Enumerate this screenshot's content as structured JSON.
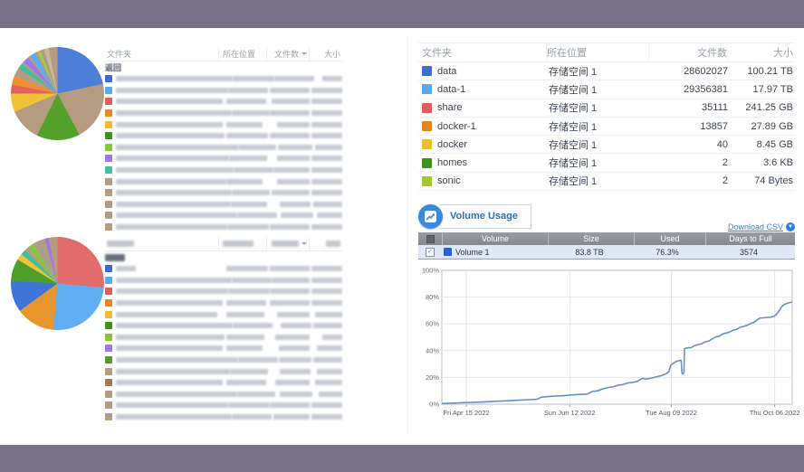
{
  "app": {
    "background": "#797284",
    "panel": "#ffffff"
  },
  "left_top_table": {
    "headers": {
      "folder": "文件夹",
      "location": "所在位置",
      "count": "文件数",
      "size": "大小"
    },
    "back_label": "返回",
    "redacted": true,
    "pie_slices": [
      {
        "color": "#4d7fd9",
        "deg": 78
      },
      {
        "color": "#b59c80",
        "deg": 74
      },
      {
        "color": "#53a02b",
        "deg": 54
      },
      {
        "color": "#b59c80",
        "deg": 41
      },
      {
        "color": "#f0c237",
        "deg": 23
      },
      {
        "color": "#e26262",
        "deg": 11
      },
      {
        "color": "#ee8f2f",
        "deg": 11
      },
      {
        "color": "#b59c80",
        "deg": 11
      },
      {
        "color": "#44bd9d",
        "deg": 7
      },
      {
        "color": "#b59c80",
        "deg": 3
      },
      {
        "color": "#9c79e8",
        "deg": 8
      },
      {
        "color": "#b59c80",
        "deg": 3
      },
      {
        "color": "#58aef2",
        "deg": 7
      },
      {
        "color": "#b59c80",
        "deg": 3
      },
      {
        "color": "#a2cd4a",
        "deg": 4
      },
      {
        "color": "#b59c80",
        "deg": 5
      },
      {
        "color": "#c9b89a",
        "deg": 6
      },
      {
        "color": "#b59c80",
        "deg": 11
      }
    ],
    "rows": [
      {
        "color": "#3b6cc9",
        "w": [
          152,
          46,
          44,
          22
        ]
      },
      {
        "color": "#58aaf0",
        "w": [
          128,
          44,
          46,
          40
        ]
      },
      {
        "color": "#e25c5c",
        "w": [
          118,
          44,
          42,
          44
        ]
      },
      {
        "color": "#e6881f",
        "w": [
          168,
          42,
          46,
          48
        ]
      },
      {
        "color": "#ecbe30",
        "w": [
          118,
          40,
          36,
          40
        ]
      },
      {
        "color": "#3a941c",
        "w": [
          120,
          46,
          44,
          46
        ]
      },
      {
        "color": "#8bc434",
        "w": [
          150,
          42,
          38,
          30
        ]
      },
      {
        "color": "#9c79e8",
        "w": [
          128,
          42,
          36,
          38
        ]
      },
      {
        "color": "#3fbf9f",
        "w": [
          158,
          44,
          40,
          42
        ]
      },
      {
        "color": "#b59c80",
        "w": [
          122,
          40,
          36,
          36
        ]
      },
      {
        "color": "#b59c80",
        "w": [
          138,
          42,
          42,
          44
        ]
      },
      {
        "color": "#b59c80",
        "w": [
          132,
          40,
          34,
          32
        ]
      },
      {
        "color": "#b59c80",
        "w": [
          150,
          44,
          36,
          28
        ]
      },
      {
        "color": "#b59c80",
        "w": [
          126,
          46,
          48,
          46
        ]
      }
    ]
  },
  "left_bottom_table": {
    "headers_redacted": true,
    "redacted": true,
    "pie_slices": [
      {
        "color": "#e26c6c",
        "deg": 95
      },
      {
        "color": "#62aef2",
        "deg": 90
      },
      {
        "color": "#e8962e",
        "deg": 49
      },
      {
        "color": "#3f74d8",
        "deg": 39
      },
      {
        "color": "#4f9e2a",
        "deg": 28
      },
      {
        "color": "#f0c237",
        "deg": 8
      },
      {
        "color": "#3fbf9f",
        "deg": 7
      },
      {
        "color": "#b59c80",
        "deg": 4
      },
      {
        "color": "#8bc34a",
        "deg": 9
      },
      {
        "color": "#b59c80",
        "deg": 5
      },
      {
        "color": "#9aa0a8",
        "deg": 3
      },
      {
        "color": "#b59c80",
        "deg": 7
      },
      {
        "color": "#9c79e8",
        "deg": 5
      },
      {
        "color": "#b59c80",
        "deg": 11
      }
    ],
    "rows": [
      {
        "color": "#3b6cc9",
        "w": [
          22,
          46,
          44,
          34
        ]
      },
      {
        "color": "#58aaf0",
        "w": [
          150,
          44,
          42,
          38
        ]
      },
      {
        "color": "#e25c5c",
        "w": [
          140,
          46,
          48,
          40
        ]
      },
      {
        "color": "#e6881f",
        "w": [
          118,
          44,
          44,
          38
        ]
      },
      {
        "color": "#ecbe30",
        "w": [
          112,
          42,
          36,
          30
        ]
      },
      {
        "color": "#3a941c",
        "w": [
          136,
          44,
          34,
          32
        ]
      },
      {
        "color": "#8bc434",
        "w": [
          120,
          42,
          38,
          22
        ]
      },
      {
        "color": "#9c79e8",
        "w": [
          118,
          40,
          34,
          28
        ]
      },
      {
        "color": "#4f9e2a",
        "w": [
          162,
          44,
          36,
          32
        ]
      },
      {
        "color": "#b59c80",
        "w": [
          130,
          42,
          34,
          28
        ]
      },
      {
        "color": "#9b7b52",
        "w": [
          118,
          44,
          38,
          30
        ]
      },
      {
        "color": "#b59c80",
        "w": [
          148,
          42,
          36,
          26
        ]
      },
      {
        "color": "#b59c80",
        "w": [
          172,
          46,
          44,
          46
        ]
      },
      {
        "color": "#b59c80",
        "w": [
          138,
          44,
          40,
          48
        ]
      }
    ]
  },
  "folder_table": {
    "headers": {
      "folder": "文件夹",
      "location": "所在位置",
      "count": "文件数",
      "size": "大小"
    },
    "rows": [
      {
        "color": "#3e6fd0",
        "name": "data",
        "location": "存储空间 1",
        "count": "28602027",
        "size": "100.21 TB"
      },
      {
        "color": "#58a9ef",
        "name": "data-1",
        "location": "存储空间 1",
        "count": "29356381",
        "size": "17.97 TB"
      },
      {
        "color": "#e25c5c",
        "name": "share",
        "location": "存储空间 1",
        "count": "35111",
        "size": "241.25 GB"
      },
      {
        "color": "#e0851f",
        "name": "docker-1",
        "location": "存储空间 1",
        "count": "13857",
        "size": "27.89 GB"
      },
      {
        "color": "#ecc033",
        "name": "docker",
        "location": "存储空间 1",
        "count": "40",
        "size": "8.45 GB"
      },
      {
        "color": "#3c921c",
        "name": "homes",
        "location": "存储空间 1",
        "count": "2",
        "size": "3.6 KB"
      },
      {
        "color": "#a3c832",
        "name": "sonic",
        "location": "存储空间 1",
        "count": "2",
        "size": "74 Bytes"
      }
    ]
  },
  "volume_usage": {
    "title": "Volume Usage",
    "download_csv_label": "Download CSV",
    "table": {
      "headers": {
        "volume": "Volume",
        "size": "Size",
        "used": "Used",
        "days_to_full": "Days to Full"
      },
      "row": {
        "color": "#2f5fce",
        "name": "Volume 1",
        "size": "83.8 TB",
        "used": "76.3%",
        "days_to_full": "3574",
        "checked": "✓"
      }
    }
  },
  "chart_data": {
    "type": "line",
    "title": "Volume Usage",
    "ylabel": "",
    "xlabel": "",
    "ylim": [
      0,
      100
    ],
    "grid": true,
    "yticks": [
      {
        "pct": 0,
        "label": "0%"
      },
      {
        "pct": 20,
        "label": "20%"
      },
      {
        "pct": 40,
        "label": "40%"
      },
      {
        "pct": 60,
        "label": "60%"
      },
      {
        "pct": 80,
        "label": "80%"
      },
      {
        "pct": 100,
        "label": "100%"
      }
    ],
    "xticks": [
      {
        "pos": 0.07,
        "label": "Fri Apr 15 2022"
      },
      {
        "pos": 0.365,
        "label": "Sun Jun 12 2022"
      },
      {
        "pos": 0.655,
        "label": "Tue Aug 09 2022"
      },
      {
        "pos": 0.95,
        "label": "Thu Oct 06 2022"
      }
    ],
    "series": [
      {
        "name": "Volume 1",
        "color": "#688fc8",
        "points": [
          [
            0,
            0.5
          ],
          [
            0.02,
            0.7
          ],
          [
            0.05,
            1
          ],
          [
            0.07,
            1.2
          ],
          [
            0.1,
            1.5
          ],
          [
            0.13,
            1.8
          ],
          [
            0.16,
            2.2
          ],
          [
            0.19,
            2.6
          ],
          [
            0.22,
            3
          ],
          [
            0.25,
            3.4
          ],
          [
            0.27,
            3.6
          ],
          [
            0.285,
            5.3
          ],
          [
            0.3,
            5.6
          ],
          [
            0.32,
            6
          ],
          [
            0.345,
            6.3
          ],
          [
            0.365,
            6.8
          ],
          [
            0.39,
            7.2
          ],
          [
            0.415,
            7.6
          ],
          [
            0.43,
            9.5
          ],
          [
            0.445,
            10
          ],
          [
            0.46,
            11.5
          ],
          [
            0.475,
            12.5
          ],
          [
            0.49,
            13
          ],
          [
            0.505,
            14.3
          ],
          [
            0.515,
            14.6
          ],
          [
            0.53,
            15.8
          ],
          [
            0.545,
            16.3
          ],
          [
            0.558,
            17
          ],
          [
            0.572,
            19.3
          ],
          [
            0.582,
            18.7
          ],
          [
            0.6,
            19.6
          ],
          [
            0.615,
            20.6
          ],
          [
            0.63,
            21.6
          ],
          [
            0.64,
            22.8
          ],
          [
            0.648,
            24.3
          ],
          [
            0.653,
            29
          ],
          [
            0.66,
            30.5
          ],
          [
            0.67,
            32
          ],
          [
            0.678,
            32.7
          ],
          [
            0.683,
            32.7
          ],
          [
            0.6855,
            23
          ],
          [
            0.688,
            22.5
          ],
          [
            0.691,
            23.5
          ],
          [
            0.6925,
            41.5
          ],
          [
            0.7,
            42
          ],
          [
            0.712,
            42.3
          ],
          [
            0.72,
            43.6
          ],
          [
            0.732,
            44.6
          ],
          [
            0.742,
            45.2
          ],
          [
            0.752,
            46.6
          ],
          [
            0.762,
            47.2
          ],
          [
            0.772,
            48.8
          ],
          [
            0.782,
            50.2
          ],
          [
            0.792,
            50.8
          ],
          [
            0.802,
            52.6
          ],
          [
            0.812,
            53.2
          ],
          [
            0.822,
            54
          ],
          [
            0.832,
            55.4
          ],
          [
            0.842,
            56
          ],
          [
            0.852,
            57.6
          ],
          [
            0.862,
            58.2
          ],
          [
            0.872,
            59
          ],
          [
            0.882,
            60.4
          ],
          [
            0.89,
            61
          ],
          [
            0.9,
            63
          ],
          [
            0.908,
            64.4
          ],
          [
            0.918,
            64.5
          ],
          [
            0.928,
            64.8
          ],
          [
            0.938,
            65
          ],
          [
            0.948,
            65.6
          ],
          [
            0.956,
            67.5
          ],
          [
            0.963,
            70
          ],
          [
            0.97,
            73
          ],
          [
            0.978,
            74.6
          ],
          [
            0.988,
            75.6
          ],
          [
            1,
            76.3
          ]
        ]
      }
    ]
  }
}
